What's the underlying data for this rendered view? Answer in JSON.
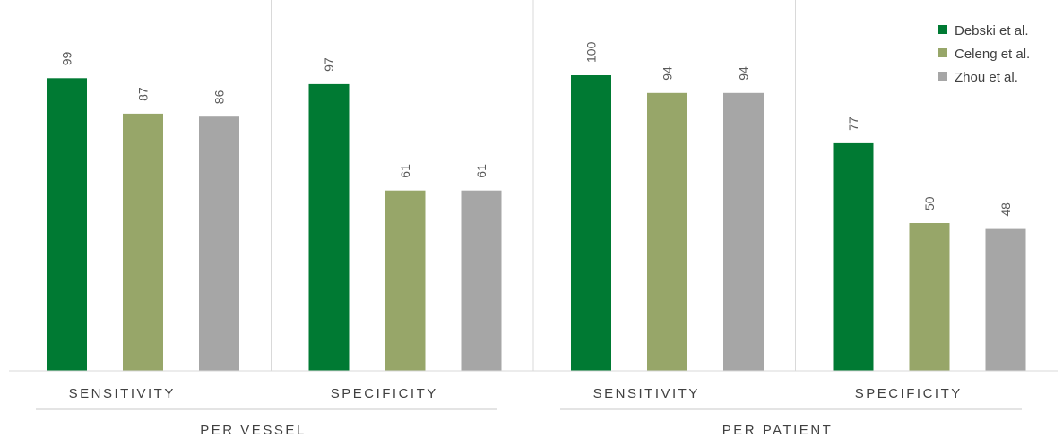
{
  "chart_data": {
    "type": "bar",
    "groups": [
      "PER VESSEL",
      "PER PATIENT"
    ],
    "categories": [
      "SENSITIVITY",
      "SPECIFICITY",
      "SENSITIVITY",
      "SPECIFICITY"
    ],
    "category_group": [
      0,
      0,
      1,
      1
    ],
    "series": [
      {
        "name": "Debski et al.",
        "color": "#007A33",
        "values": [
          99,
          97,
          100,
          77
        ]
      },
      {
        "name": "Celeng et al.",
        "color": "#97A669",
        "values": [
          87,
          61,
          94,
          50
        ]
      },
      {
        "name": "Zhou et al.",
        "color": "#A6A6A6",
        "values": [
          86,
          61,
          94,
          48
        ]
      }
    ],
    "ylim": [
      0,
      100
    ],
    "grid": false,
    "data_labels": true,
    "legend_position": "top-right",
    "title": "",
    "xlabel": "",
    "ylabel": ""
  }
}
